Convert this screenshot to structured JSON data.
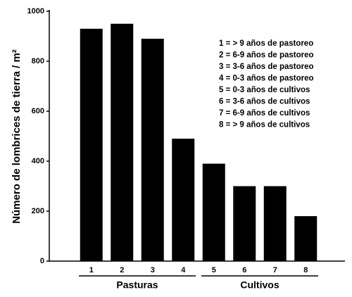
{
  "chart_data": {
    "type": "bar",
    "y_label": "Número de lombrices de tierra / m²",
    "categories": [
      "1",
      "2",
      "3",
      "4",
      "5",
      "6",
      "7",
      "8"
    ],
    "values": [
      930,
      950,
      890,
      490,
      390,
      300,
      300,
      180
    ],
    "color": "#000000",
    "ylim": [
      0,
      1000
    ],
    "yticks": [
      0,
      200,
      400,
      600,
      800,
      1000
    ],
    "grid": false,
    "groups": [
      "Pasturas",
      "Cultivos"
    ],
    "annotations": [
      "1 = > 9 años de pastoreo",
      "2 = 6-9 años de pastoreo",
      "3 = 3-6 años de pastoreo",
      "4 = 0-3 años de pastoreo",
      "5 = 0-3 años de cultivos",
      "6 = 3-6 años de cultivos",
      "7 = 6-9 años de cultivos",
      "8 = > 9 años de cultivos"
    ]
  }
}
